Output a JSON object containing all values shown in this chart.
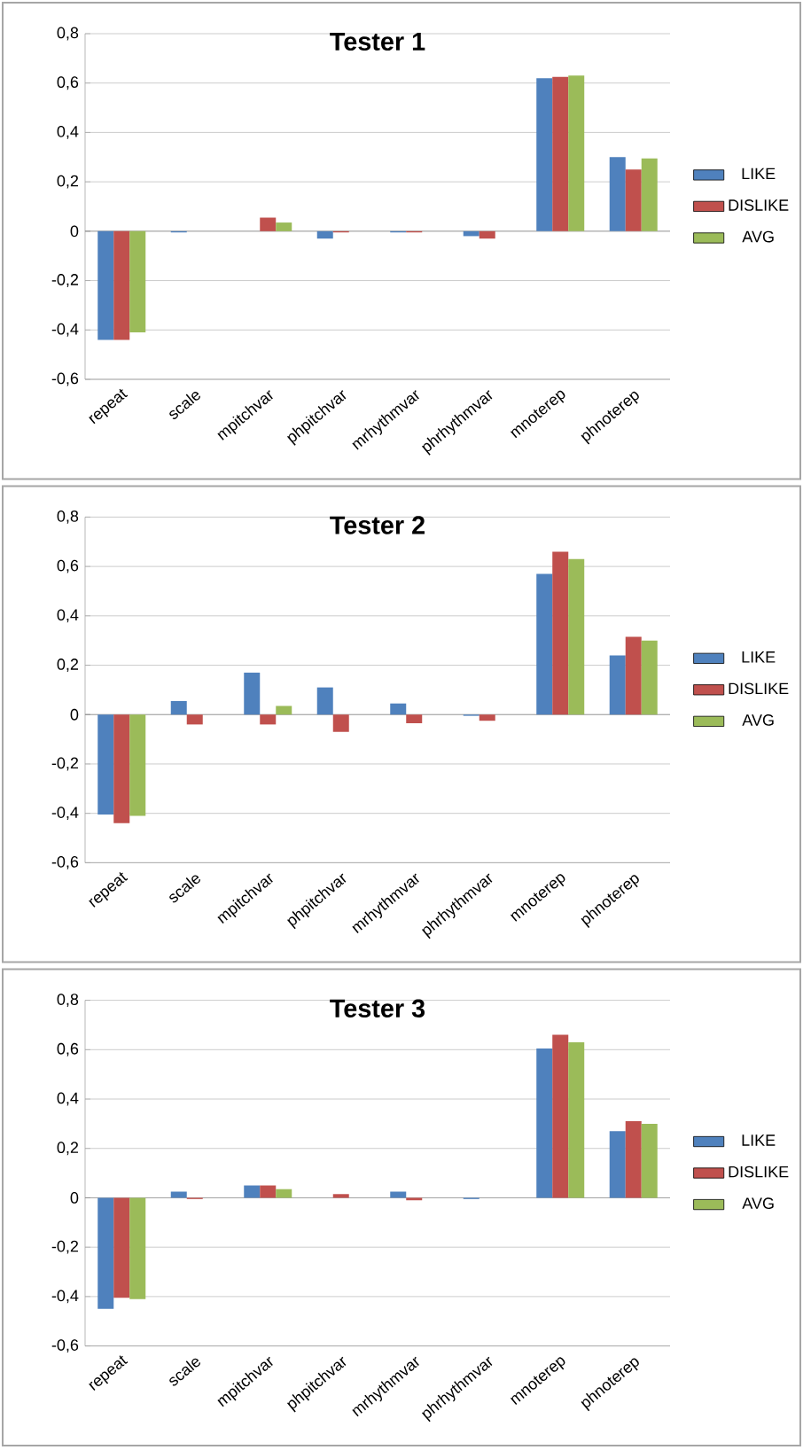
{
  "chart_data": [
    {
      "type": "bar",
      "title": "Tester 1",
      "categories": [
        "repeat",
        "scale",
        "mpitchvar",
        "phpitchvar",
        "mrhythmvar",
        "phrhythmvar",
        "mnoterep",
        "phnoterep"
      ],
      "series": [
        {
          "name": "LIKE",
          "color": "#4f81bd",
          "values": [
            -0.44,
            -0.005,
            0,
            -0.03,
            -0.005,
            -0.02,
            0.62,
            0.3
          ]
        },
        {
          "name": "DISLIKE",
          "color": "#c0504d",
          "values": [
            -0.44,
            0,
            0.055,
            -0.005,
            -0.005,
            -0.03,
            0.625,
            0.25
          ]
        },
        {
          "name": "AVG",
          "color": "#9bbb59",
          "values": [
            -0.41,
            0,
            0.035,
            0,
            0,
            0,
            0.63,
            0.295
          ]
        }
      ],
      "ylim": [
        -0.6,
        0.8
      ],
      "yticks": [
        {
          "value": -0.6,
          "label": "-0,6"
        },
        {
          "value": -0.4,
          "label": "-0,4"
        },
        {
          "value": -0.2,
          "label": "-0,2"
        },
        0,
        {
          "value": 0.2,
          "label": "0,2"
        },
        {
          "value": 0.4,
          "label": "0,4"
        },
        {
          "value": 0.6,
          "label": "0,6"
        },
        {
          "value": 0.8,
          "label": "0,8"
        }
      ],
      "grid": "y",
      "legend": "right"
    },
    {
      "type": "bar",
      "title": "Tester 2",
      "categories": [
        "repeat",
        "scale",
        "mpitchvar",
        "phpitchvar",
        "mrhythmvar",
        "phrhythmvar",
        "mnoterep",
        "phnoterep"
      ],
      "series": [
        {
          "name": "LIKE",
          "color": "#4f81bd",
          "values": [
            -0.405,
            0.055,
            0.17,
            0.11,
            0.045,
            -0.005,
            0.57,
            0.24
          ]
        },
        {
          "name": "DISLIKE",
          "color": "#c0504d",
          "values": [
            -0.44,
            -0.04,
            -0.04,
            -0.07,
            -0.035,
            -0.025,
            0.66,
            0.315
          ]
        },
        {
          "name": "AVG",
          "color": "#9bbb59",
          "values": [
            -0.41,
            0,
            0.035,
            0,
            0,
            0,
            0.63,
            0.3
          ]
        }
      ],
      "ylim": [
        -0.6,
        0.8
      ],
      "yticks": [
        {
          "value": -0.6,
          "label": "-0,6"
        },
        {
          "value": -0.4,
          "label": "-0,4"
        },
        {
          "value": -0.2,
          "label": "-0,2"
        },
        0,
        {
          "value": 0.2,
          "label": "0,2"
        },
        {
          "value": 0.4,
          "label": "0,4"
        },
        {
          "value": 0.6,
          "label": "0,6"
        },
        {
          "value": 0.8,
          "label": "0,8"
        }
      ],
      "grid": "y",
      "legend": "right"
    },
    {
      "type": "bar",
      "title": "Tester 3",
      "categories": [
        "repeat",
        "scale",
        "mpitchvar",
        "phpitchvar",
        "mrhythmvar",
        "phrhythmvar",
        "mnoterep",
        "phnoterep"
      ],
      "series": [
        {
          "name": "LIKE",
          "color": "#4f81bd",
          "values": [
            -0.45,
            0.025,
            0.05,
            0,
            0.025,
            -0.005,
            0.605,
            0.27
          ]
        },
        {
          "name": "DISLIKE",
          "color": "#c0504d",
          "values": [
            -0.405,
            -0.005,
            0.05,
            0.015,
            -0.01,
            0,
            0.66,
            0.31
          ]
        },
        {
          "name": "AVG",
          "color": "#9bbb59",
          "values": [
            -0.41,
            0,
            0.035,
            0,
            0,
            0,
            0.63,
            0.3
          ]
        }
      ],
      "ylim": [
        -0.6,
        0.8
      ],
      "yticks": [
        {
          "value": -0.6,
          "label": "-0,6"
        },
        {
          "value": -0.4,
          "label": "-0,4"
        },
        {
          "value": -0.2,
          "label": "-0,2"
        },
        0,
        {
          "value": 0.2,
          "label": "0,2"
        },
        {
          "value": 0.4,
          "label": "0,4"
        },
        {
          "value": 0.6,
          "label": "0,6"
        },
        {
          "value": 0.8,
          "label": "0,8"
        }
      ],
      "grid": "y",
      "legend": "right"
    }
  ]
}
